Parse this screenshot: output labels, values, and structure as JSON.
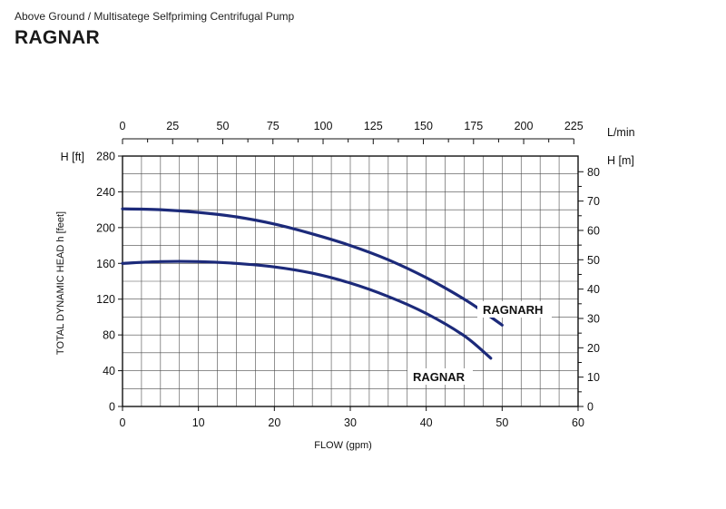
{
  "header": {
    "subtitle": "Above Ground / Multisatege Selfpriming Centrifugal Pump",
    "title": "RAGNAR"
  },
  "chart_data": {
    "type": "line",
    "xlabel": "FLOW (gpm)",
    "ylabel": "TOTAL DYNAMIC HEAD h [feet]",
    "x_axis": {
      "range": [
        0,
        60
      ],
      "ticks": [
        0,
        10,
        20,
        30,
        40,
        50,
        60
      ]
    },
    "y_axis": {
      "unit_label": "H [ft]",
      "range": [
        0,
        280
      ],
      "ticks": [
        0,
        40,
        80,
        120,
        160,
        200,
        240,
        280
      ]
    },
    "top_axis": {
      "unit_label": "L/min",
      "ticks": [
        0,
        25,
        50,
        75,
        100,
        125,
        150,
        175,
        200,
        225
      ]
    },
    "right_axis": {
      "unit_label": "H [m]",
      "ticks": [
        0,
        10,
        20,
        30,
        40,
        50,
        60,
        70,
        80
      ]
    },
    "grid": true,
    "line_color": "#1c2a7a",
    "series": [
      {
        "name": "RAGNARH",
        "x": [
          0,
          5,
          10,
          15,
          20,
          25,
          30,
          35,
          40,
          45,
          48,
          50
        ],
        "y": [
          221,
          220,
          217,
          212,
          204,
          193,
          180,
          164,
          144,
          120,
          103,
          91
        ]
      },
      {
        "name": "RAGNAR",
        "x": [
          0,
          5,
          10,
          15,
          20,
          25,
          30,
          35,
          40,
          45,
          48.5
        ],
        "y": [
          160,
          162,
          162,
          160,
          156,
          149,
          138,
          123,
          104,
          79,
          54
        ]
      }
    ]
  }
}
